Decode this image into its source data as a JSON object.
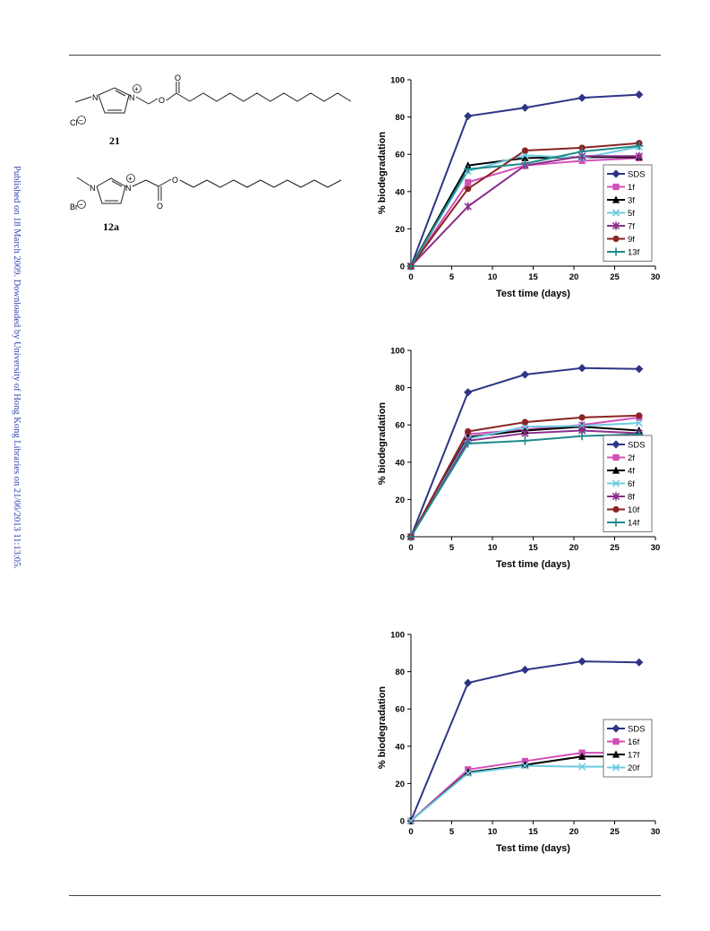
{
  "sidebar_note": "Published on 18 March 2009. Downloaded by University of Hong Kong Libraries on 21/06/2013 11:13:05.",
  "compounds": [
    {
      "label": "21",
      "counterion": "Cl",
      "charge": "+",
      "neg_charge": "−",
      "n_atom": "N",
      "o_atom": "O"
    },
    {
      "label": "12a",
      "counterion": "Br",
      "charge": "+",
      "neg_charge": "−",
      "n_atom": "N",
      "o_atom": "O"
    }
  ],
  "colors": {
    "SDS": "#2e3586",
    "1f": "#d24fb8",
    "3f": "#000000",
    "5f": "#6ccbe0",
    "7f": "#8a2f8a",
    "9f": "#8b2323",
    "13f": "#1f8a8a"
  },
  "chart_data": [
    {
      "type": "line",
      "xlabel": "Test time (days)",
      "ylabel": "% biodegradation",
      "xlim": [
        0,
        30
      ],
      "ylim": [
        0,
        100
      ],
      "xticks": [
        0,
        5,
        10,
        15,
        20,
        25,
        30
      ],
      "yticks": [
        0,
        20,
        40,
        60,
        80,
        100
      ],
      "x": [
        0,
        7,
        14,
        21,
        28
      ],
      "legend": "right",
      "series": [
        {
          "name": "SDS",
          "color": "#2e3586",
          "marker": "diamond",
          "values": [
            0,
            80.5,
            85,
            90.3,
            92
          ]
        },
        {
          "name": "1f",
          "color": "#d24fb8",
          "marker": "square",
          "values": [
            0,
            45,
            54,
            56.5,
            58
          ]
        },
        {
          "name": "3f",
          "color": "#000000",
          "marker": "triangle",
          "values": [
            0,
            54,
            58,
            58.5,
            58.5
          ]
        },
        {
          "name": "5f",
          "color": "#6ccbe0",
          "marker": "x",
          "values": [
            0,
            51,
            59.5,
            58,
            64
          ]
        },
        {
          "name": "7f",
          "color": "#8a2f8a",
          "marker": "star",
          "values": [
            0,
            32,
            54,
            59,
            59
          ]
        },
        {
          "name": "9f",
          "color": "#8b2323",
          "marker": "circle",
          "values": [
            0,
            41.5,
            62,
            63.5,
            66
          ]
        },
        {
          "name": "13f",
          "color": "#1f8a8a",
          "marker": "plus",
          "values": [
            0,
            52,
            55,
            61.5,
            64.5
          ]
        }
      ]
    },
    {
      "type": "line",
      "xlabel": "Test time (days)",
      "ylabel": "% biodegradation",
      "xlim": [
        0,
        30
      ],
      "ylim": [
        0,
        100
      ],
      "xticks": [
        0,
        5,
        10,
        15,
        20,
        25,
        30
      ],
      "yticks": [
        0,
        20,
        40,
        60,
        80,
        100
      ],
      "x": [
        0,
        7,
        14,
        21,
        28
      ],
      "legend": "right",
      "series": [
        {
          "name": "SDS",
          "color": "#2e3586",
          "marker": "diamond",
          "values": [
            0,
            77.5,
            87,
            90.5,
            90
          ]
        },
        {
          "name": "2f",
          "color": "#d24fb8",
          "marker": "square",
          "values": [
            0,
            55,
            57.5,
            60,
            64
          ]
        },
        {
          "name": "4f",
          "color": "#000000",
          "marker": "triangle",
          "values": [
            0,
            53.5,
            57,
            59,
            57
          ]
        },
        {
          "name": "6f",
          "color": "#6ccbe0",
          "marker": "x",
          "values": [
            0,
            52.5,
            59,
            59.5,
            61
          ]
        },
        {
          "name": "8f",
          "color": "#8a2f8a",
          "marker": "star",
          "values": [
            0,
            51.5,
            55.5,
            57,
            55.5
          ]
        },
        {
          "name": "10f",
          "color": "#8b2323",
          "marker": "circle",
          "values": [
            0,
            56.5,
            61.5,
            64,
            65
          ]
        },
        {
          "name": "14f",
          "color": "#1f8a8a",
          "marker": "plus",
          "values": [
            0,
            50,
            51.5,
            54,
            55
          ]
        }
      ]
    },
    {
      "type": "line",
      "xlabel": "Test time (days)",
      "ylabel": "% biodegradation",
      "xlim": [
        0,
        30
      ],
      "ylim": [
        0,
        100
      ],
      "xticks": [
        0,
        5,
        10,
        15,
        20,
        25,
        30
      ],
      "yticks": [
        0,
        20,
        40,
        60,
        80,
        100
      ],
      "x": [
        0,
        7,
        14,
        21,
        28
      ],
      "legend": "right",
      "series": [
        {
          "name": "SDS",
          "color": "#2e3586",
          "marker": "diamond",
          "values": [
            0,
            74,
            81,
            85.5,
            85
          ]
        },
        {
          "name": "16f",
          "color": "#d24fb8",
          "marker": "square",
          "values": [
            0,
            27.5,
            32,
            36.5,
            36.5
          ]
        },
        {
          "name": "17f",
          "color": "#000000",
          "marker": "triangle",
          "values": [
            0,
            26,
            30,
            34.5,
            34.5
          ]
        },
        {
          "name": "20f",
          "color": "#6ccbe0",
          "marker": "x",
          "values": [
            0,
            25.5,
            29.5,
            29,
            29
          ]
        }
      ]
    }
  ]
}
